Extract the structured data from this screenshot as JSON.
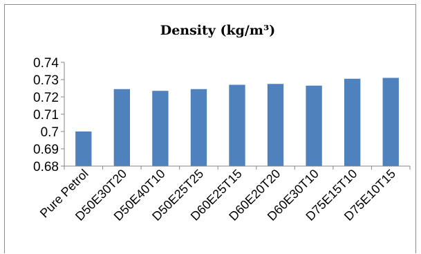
{
  "chart_data": {
    "type": "bar",
    "title": "Density (kg/m³)",
    "categories": [
      "Pure Petrol",
      "D50E30T20",
      "D50E40T10",
      "D50E25T25",
      "D60E25T15",
      "D60E20T20",
      "D60E30T10",
      "D75E15T10",
      "D75E10T15"
    ],
    "values": [
      0.7,
      0.7245,
      0.7235,
      0.7245,
      0.727,
      0.7275,
      0.7265,
      0.7305,
      0.731
    ],
    "ylim": [
      0.68,
      0.74
    ],
    "yticks": [
      "0.68",
      "0.69",
      "0.7",
      "0.71",
      "0.72",
      "0.73",
      "0.74"
    ],
    "bar_color": "#4f81bd",
    "grid": false,
    "legend": "none"
  }
}
